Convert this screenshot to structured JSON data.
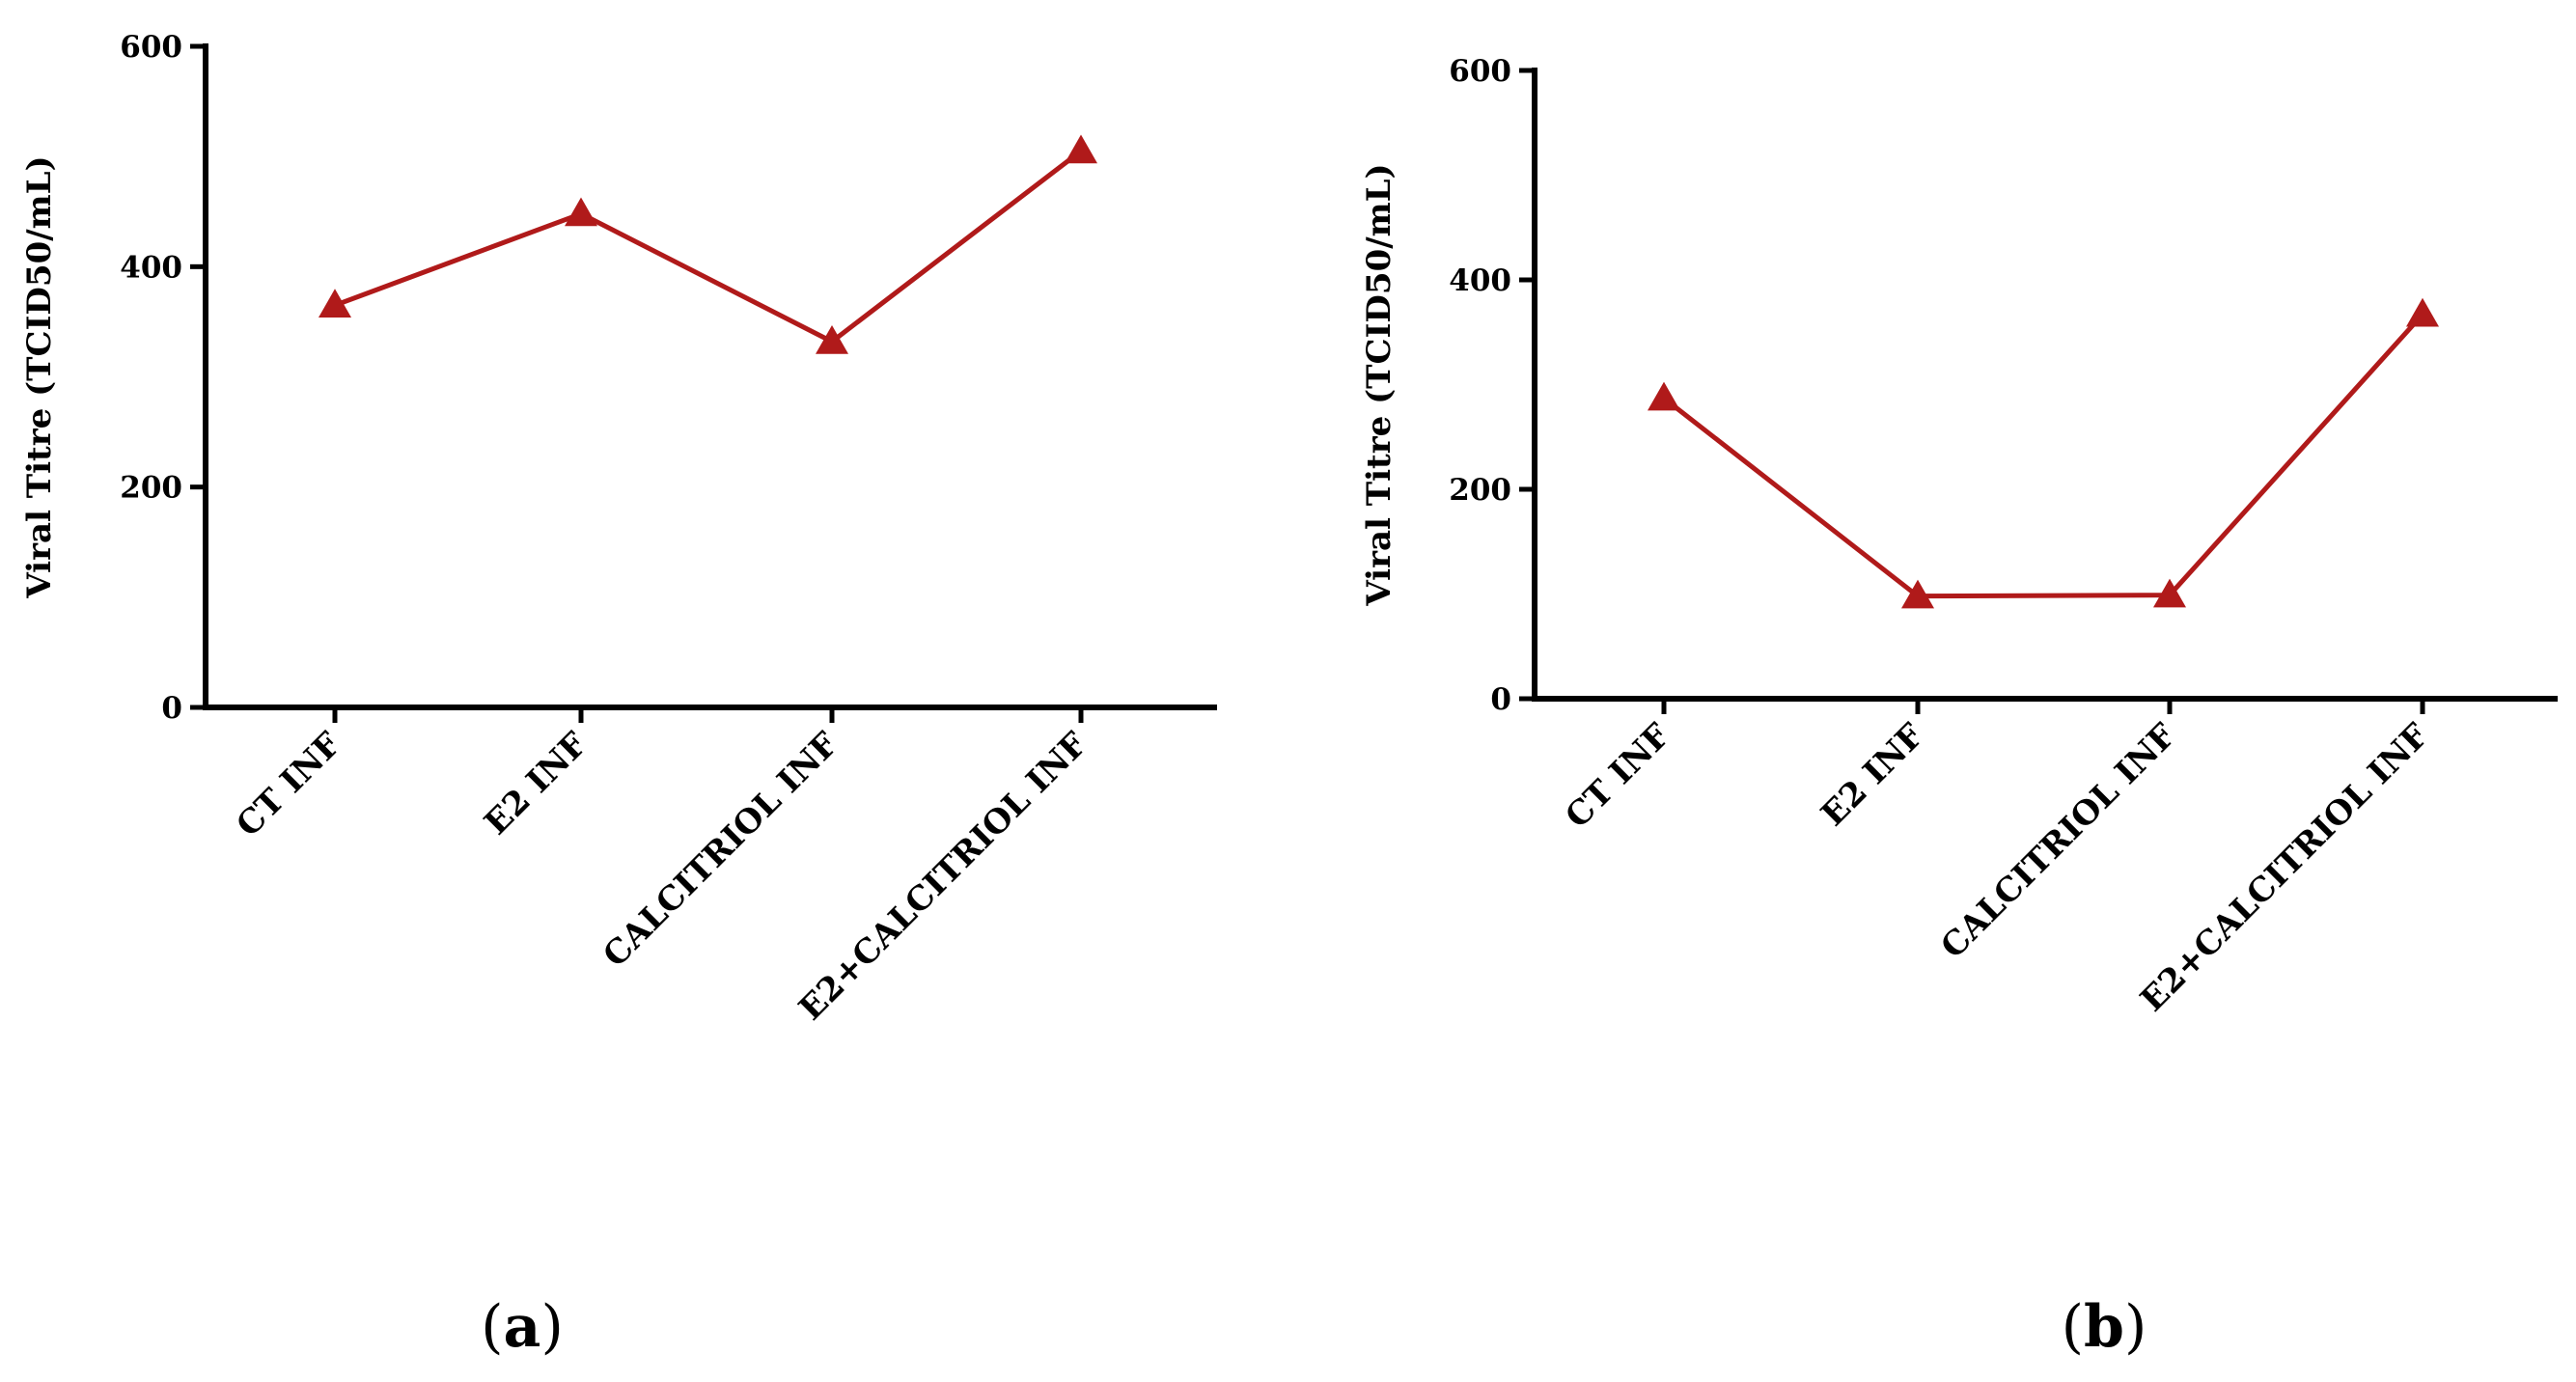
{
  "colors": {
    "series": "#b01a1a",
    "axis": "#000000"
  },
  "chart_data": [
    {
      "panel": "(a)",
      "panel_letter": "a",
      "type": "line",
      "marker": "triangle",
      "categories": [
        "CT INF",
        "E2 INF",
        "CALCITRIOL INF",
        "E2+CALCITRIOL INF"
      ],
      "values": [
        365,
        448,
        332,
        505
      ],
      "ylabel": "Viral Titre (TCID50/mL)",
      "ylim": [
        0,
        600
      ],
      "yticks": [
        0,
        200,
        400,
        600
      ],
      "grid": false
    },
    {
      "panel": "(b)",
      "panel_letter": "b",
      "type": "line",
      "marker": "triangle",
      "categories": [
        "CT INF",
        "E2 INF",
        "CALCITRIOL INF",
        "E2+CALCITRIOL INF"
      ],
      "values": [
        287,
        98,
        99,
        367
      ],
      "ylabel": "Viral Titre (TCID50/mL)",
      "ylim": [
        0,
        600
      ],
      "yticks": [
        0,
        200,
        400,
        600
      ],
      "grid": false
    }
  ]
}
